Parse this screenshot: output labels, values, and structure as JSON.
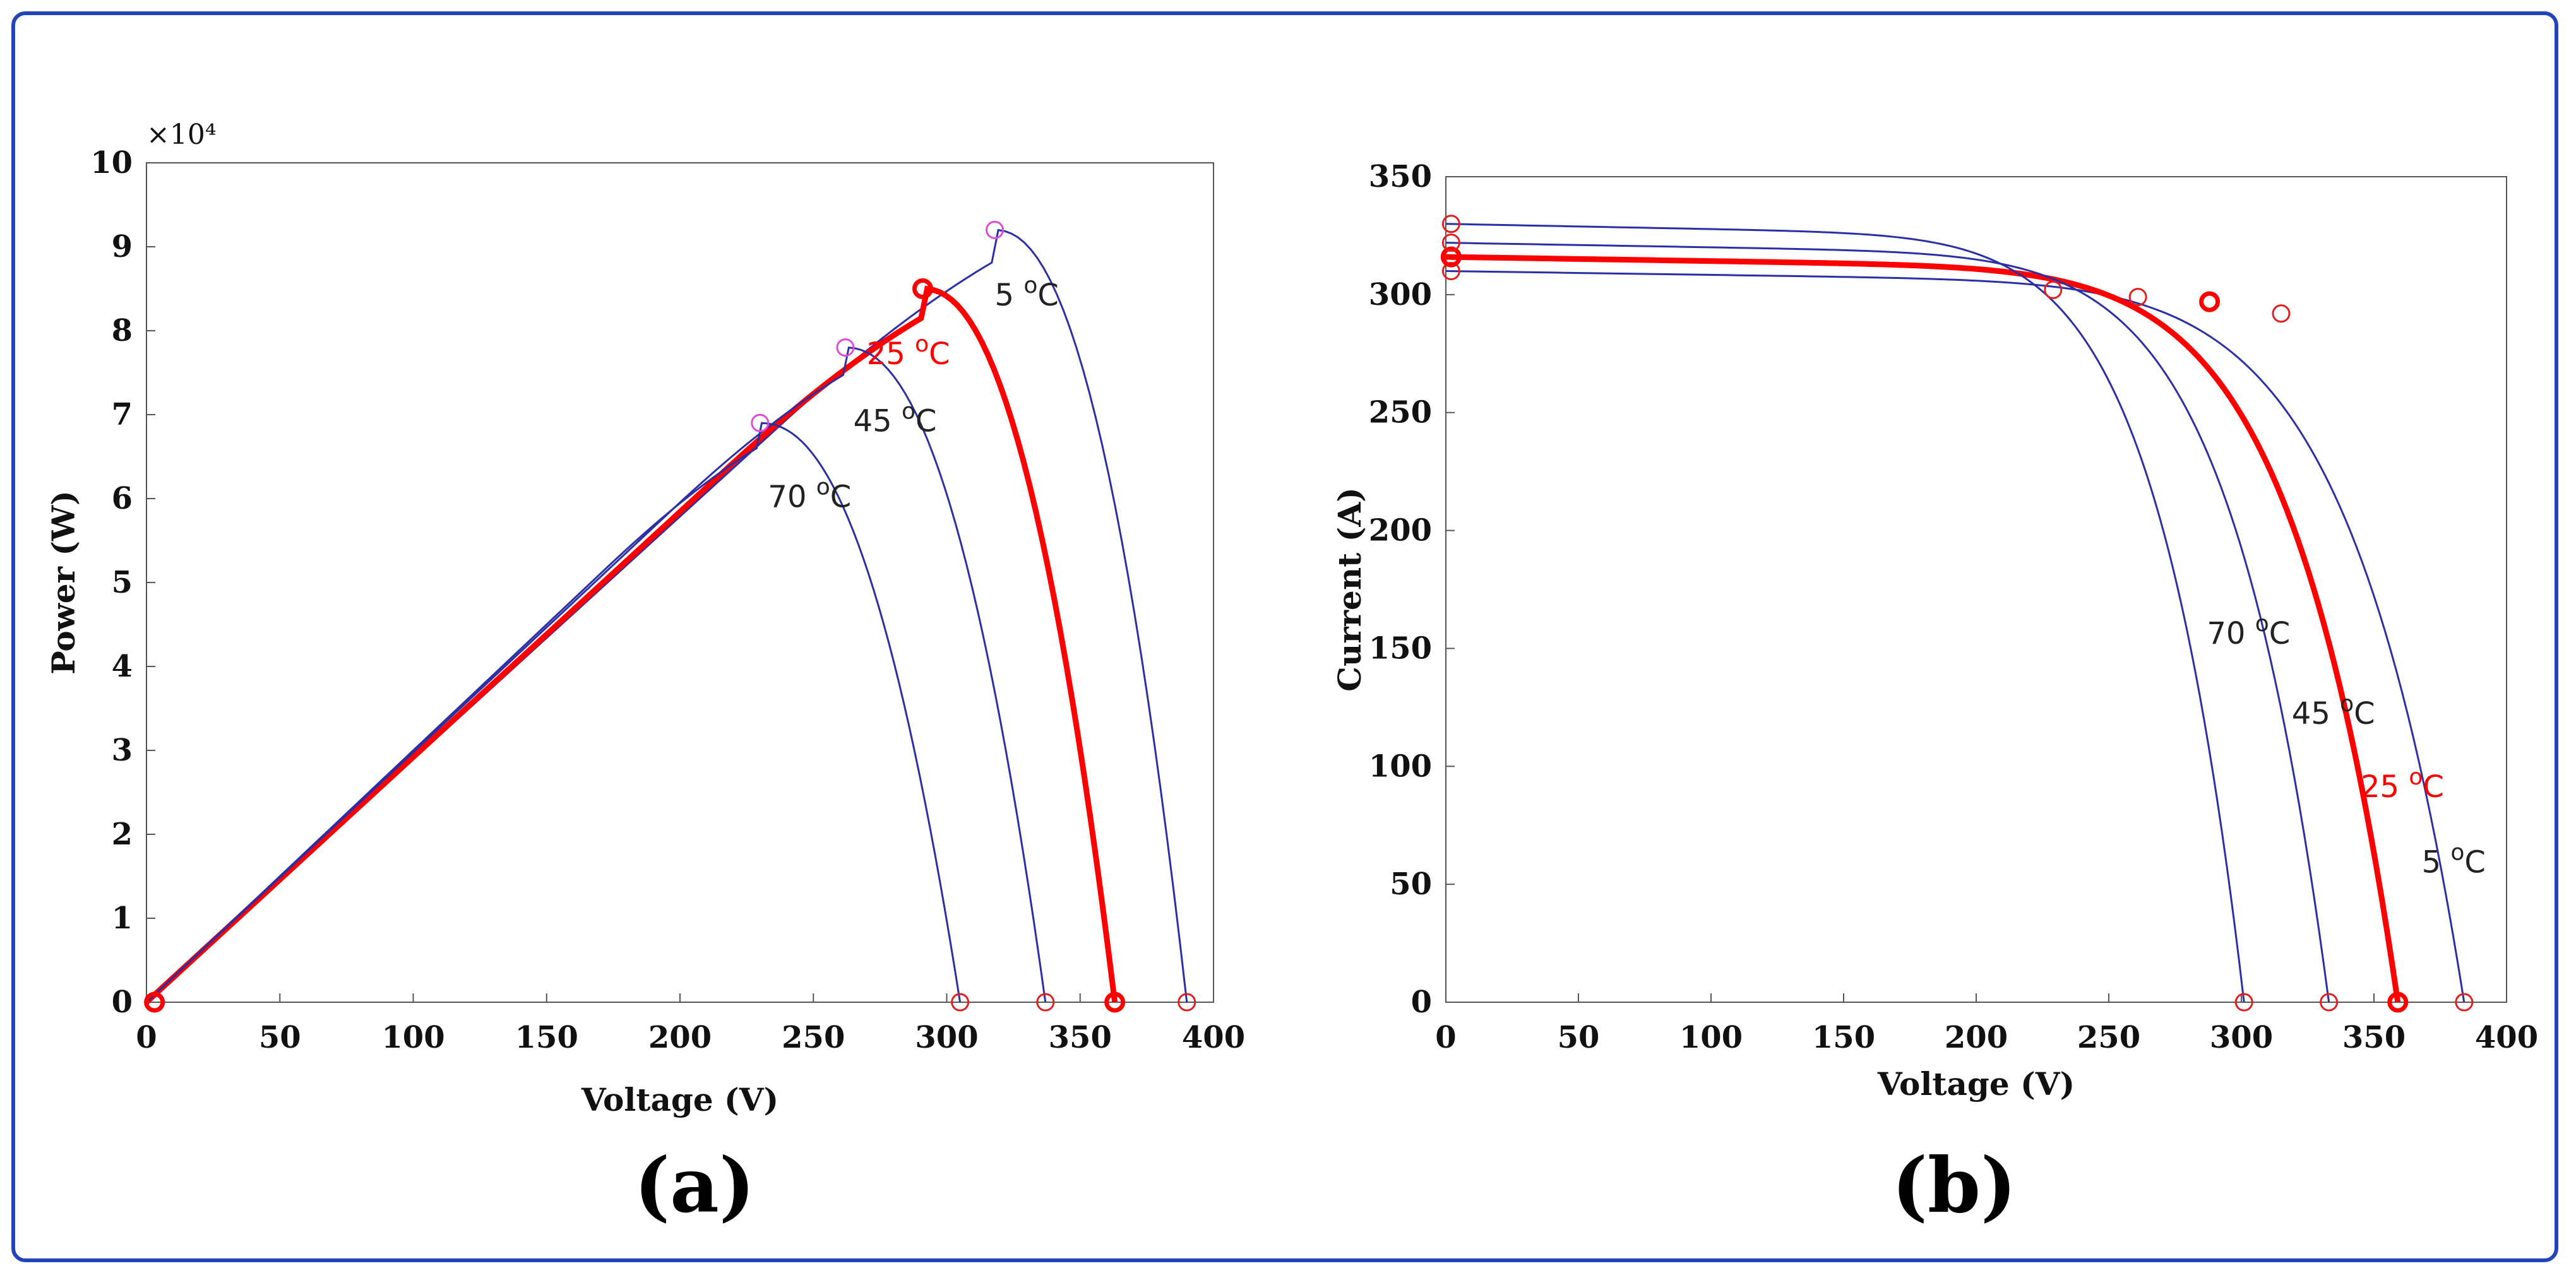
{
  "colors": {
    "frame": "#2244bb",
    "blue": "#2b2fa6",
    "red": "#ff0000",
    "marker_pink": "#e04ad8",
    "marker_red": "#e02020"
  },
  "chart_data": [
    {
      "id": "a",
      "type": "line",
      "panel_label": "(a)",
      "xlabel": "Voltage (V)",
      "ylabel": "Power (W)",
      "y_multiplier": "×10⁴",
      "xlim": [
        0,
        400
      ],
      "ylim": [
        0,
        10
      ],
      "xticks": [
        0,
        50,
        100,
        150,
        200,
        250,
        300,
        350,
        400
      ],
      "yticks": [
        0,
        1,
        2,
        3,
        4,
        5,
        6,
        7,
        8,
        9,
        10
      ],
      "series": [
        {
          "name": "5 °C",
          "label_main": "5 ",
          "label_sup": "o",
          "label_unit": "C",
          "color": "blue",
          "highlight": false,
          "voc": 390,
          "vmp": 318,
          "pmp": 9.2,
          "label_at": [
            318,
            8.3
          ]
        },
        {
          "name": "25 °C",
          "label_main": "25 ",
          "label_sup": "o",
          "label_unit": "C",
          "color": "red",
          "highlight": true,
          "voc": 363,
          "vmp": 291,
          "pmp": 8.5,
          "label_at": [
            270,
            7.6
          ]
        },
        {
          "name": "45 °C",
          "label_main": "45 ",
          "label_sup": "o",
          "label_unit": "C",
          "color": "blue",
          "highlight": false,
          "voc": 337,
          "vmp": 262,
          "pmp": 7.8,
          "label_at": [
            265,
            6.8
          ]
        },
        {
          "name": "70 °C",
          "label_main": "70 ",
          "label_sup": "o",
          "label_unit": "C",
          "color": "blue",
          "highlight": false,
          "voc": 305,
          "vmp": 230,
          "pmp": 6.9,
          "label_at": [
            233,
            5.9
          ]
        }
      ]
    },
    {
      "id": "b",
      "type": "line",
      "panel_label": "(b)",
      "xlabel": "Voltage (V)",
      "ylabel": "Current (A)",
      "xlim": [
        0,
        400
      ],
      "ylim": [
        0,
        350
      ],
      "xticks": [
        0,
        50,
        100,
        150,
        200,
        250,
        300,
        350,
        400
      ],
      "yticks": [
        0,
        50,
        100,
        150,
        200,
        250,
        300,
        350
      ],
      "series": [
        {
          "name": "5 °C",
          "label_main": "5 ",
          "label_sup": "o",
          "label_unit": "C",
          "color": "blue",
          "highlight": false,
          "isc": 310,
          "voc": 384,
          "vmp": 315,
          "imp": 292,
          "label_at": [
            368,
            55
          ]
        },
        {
          "name": "25 °C",
          "label_main": "25 ",
          "label_sup": "o",
          "label_unit": "C",
          "color": "red",
          "highlight": true,
          "isc": 316,
          "voc": 359,
          "vmp": 288,
          "imp": 297,
          "label_at": [
            345,
            87
          ]
        },
        {
          "name": "45 °C",
          "label_main": "45 ",
          "label_sup": "o",
          "label_unit": "C",
          "color": "blue",
          "highlight": false,
          "isc": 322,
          "voc": 333,
          "vmp": 261,
          "imp": 299,
          "label_at": [
            319,
            118
          ]
        },
        {
          "name": "70 °C",
          "label_main": "70 ",
          "label_sup": "o",
          "label_unit": "C",
          "color": "blue",
          "highlight": false,
          "isc": 330,
          "voc": 301,
          "vmp": 229,
          "imp": 302,
          "label_at": [
            287,
            152
          ]
        }
      ]
    }
  ]
}
